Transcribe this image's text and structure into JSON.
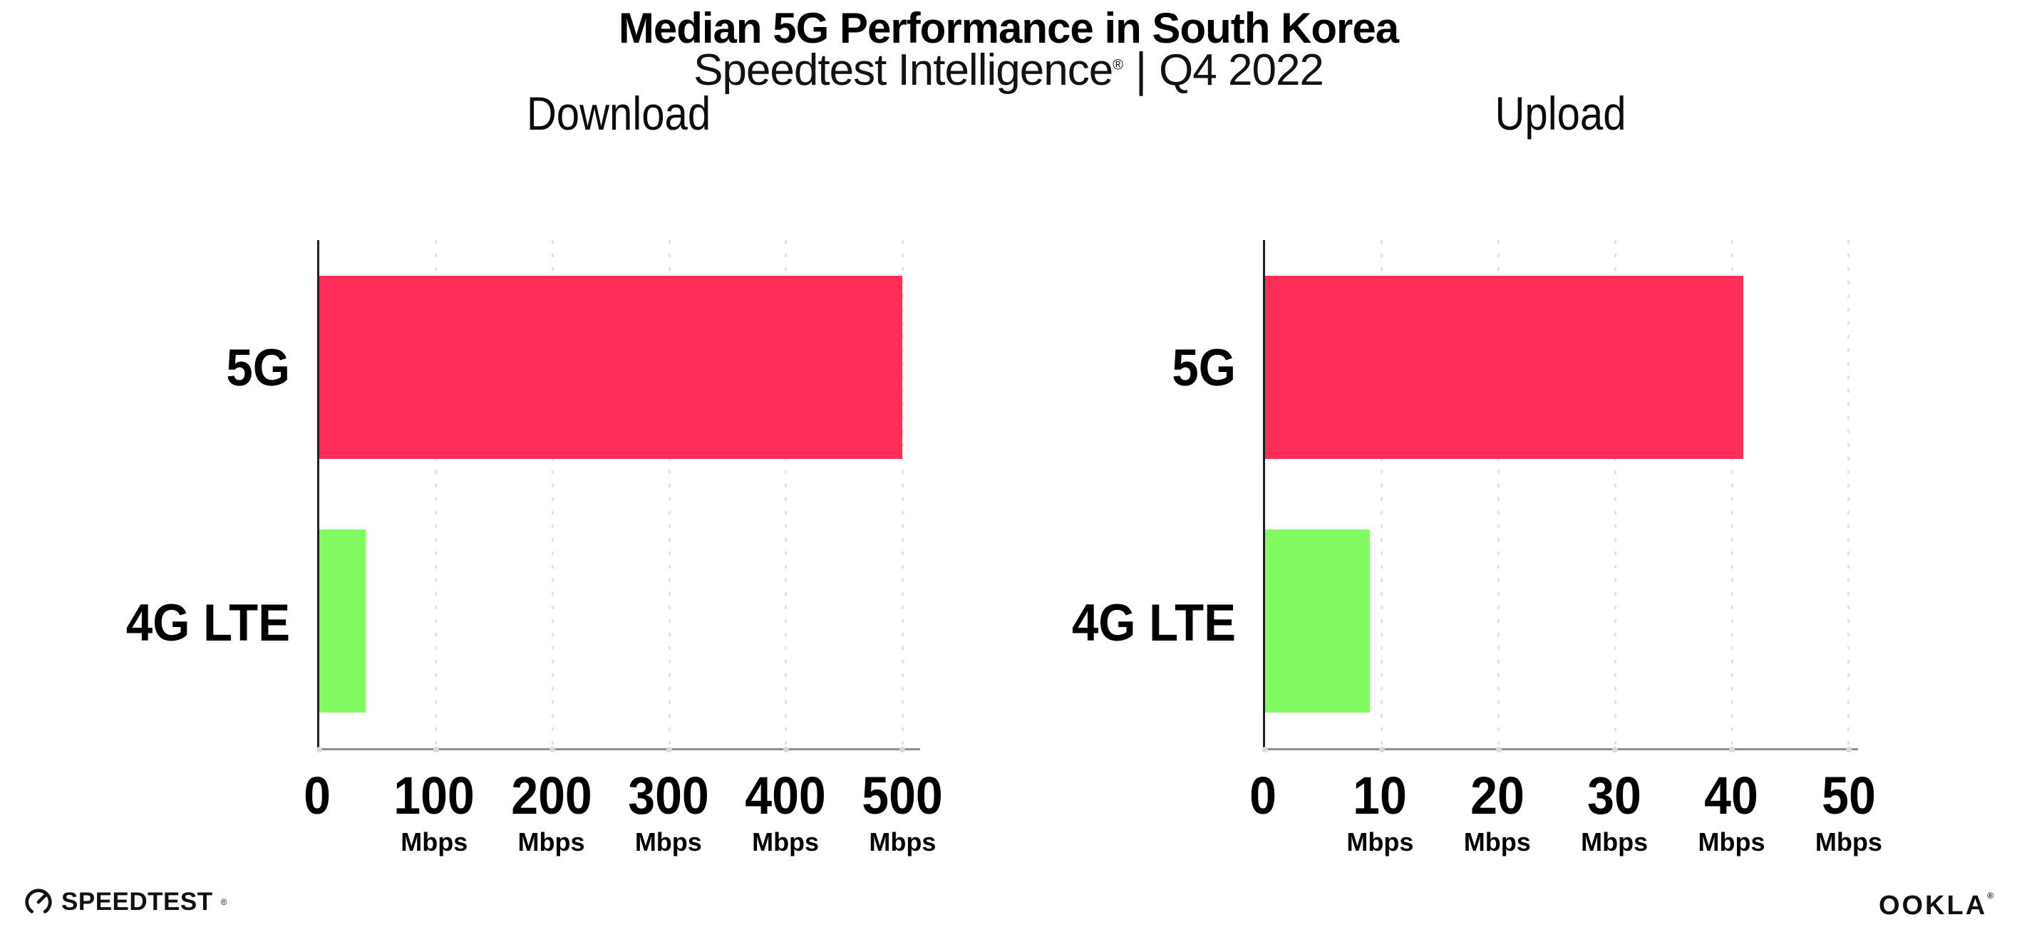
{
  "header": {
    "title": "Median 5G Performance in South Korea",
    "subtitle": {
      "brand": "Speedtest Intelligence",
      "registered_mark": "®",
      "separator": "|",
      "period": "Q4 2022"
    }
  },
  "chart_data": [
    {
      "type": "bar",
      "orientation": "horizontal",
      "title": "Download",
      "categories": [
        "5G",
        "4G LTE"
      ],
      "values": [
        500,
        40
      ],
      "unit": "Mbps",
      "xlim": [
        0,
        515
      ],
      "ticks": [
        0,
        100,
        200,
        300,
        400,
        500
      ],
      "tick_unit_label": "Mbps",
      "bar_colors": [
        "#fe2e59",
        "#82fb62"
      ],
      "grid": "vertical-dotted",
      "legend": false
    },
    {
      "type": "bar",
      "orientation": "horizontal",
      "title": "Upload",
      "categories": [
        "5G",
        "4G LTE"
      ],
      "values": [
        41,
        9
      ],
      "unit": "Mbps",
      "xlim": [
        0,
        50.8
      ],
      "ticks": [
        0,
        10,
        20,
        30,
        40,
        50
      ],
      "tick_unit_label": "Mbps",
      "bar_colors": [
        "#fe2e59",
        "#82fb62"
      ],
      "grid": "vertical-dotted",
      "legend": false
    }
  ],
  "footer": {
    "speedtest": {
      "label": "SPEEDTEST",
      "registered_mark": "®"
    },
    "ookla": {
      "label": "OOKLA",
      "registered_mark": "®"
    }
  },
  "colors": {
    "bar_5g": "#fe2e59",
    "bar_4g_lte": "#82fb62",
    "gridline": "#e2e2ed",
    "axis_y": "#1f1f1f",
    "axis_x": "#8f8f8f",
    "text": "#000000",
    "background": "#ffffff"
  }
}
